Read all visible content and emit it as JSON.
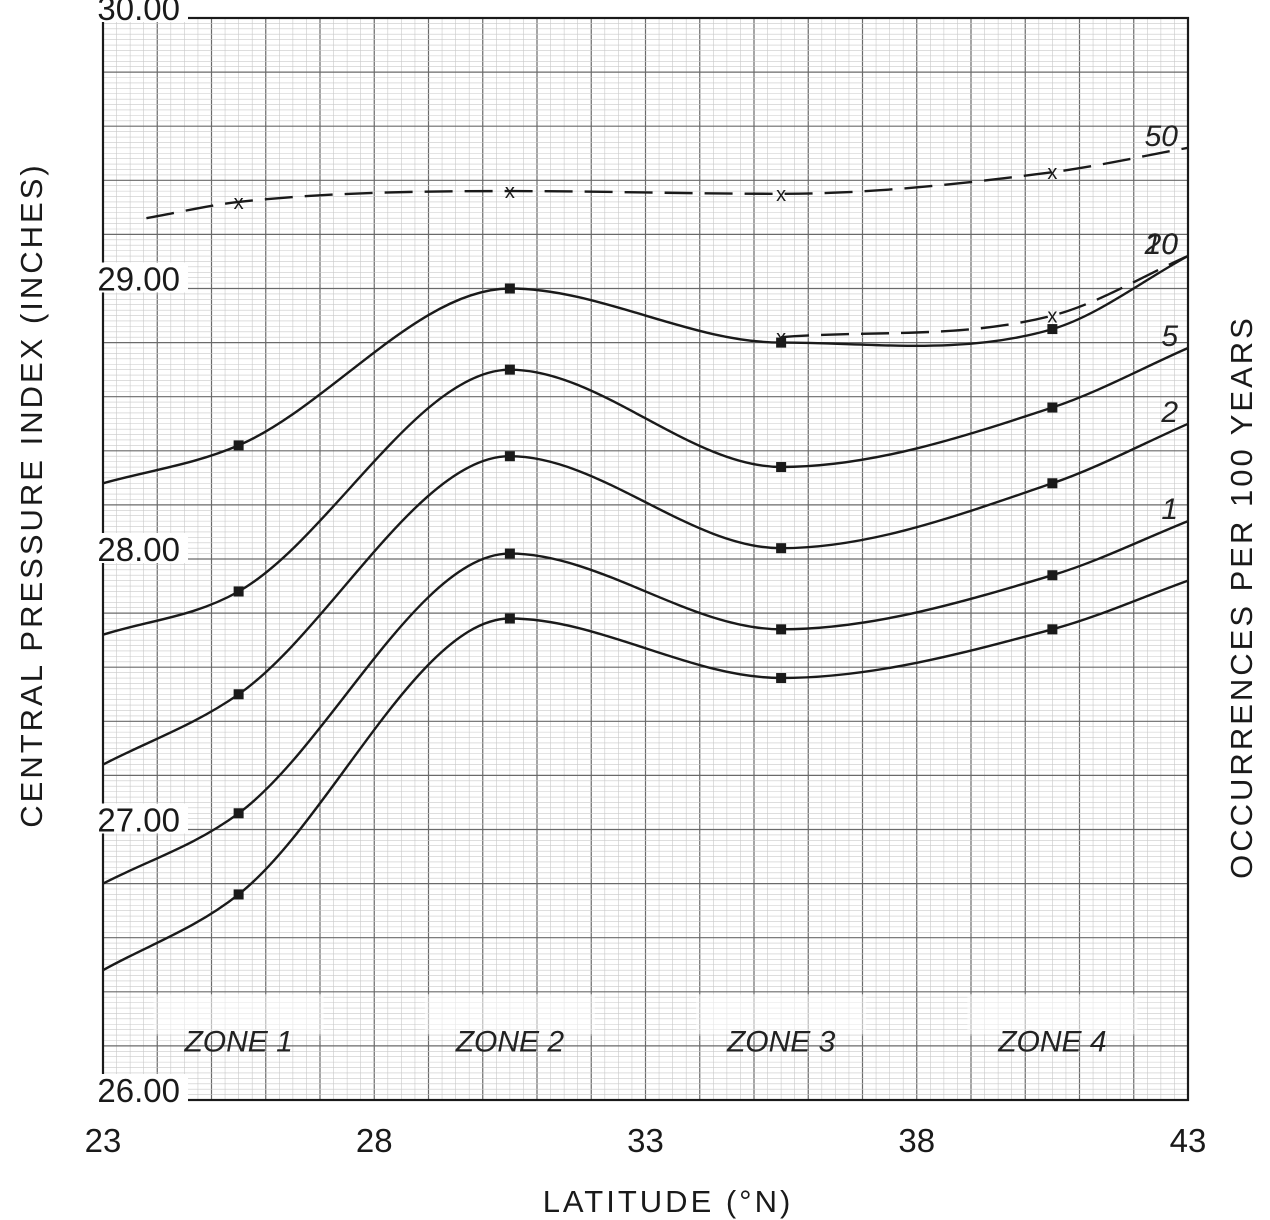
{
  "chart_data": {
    "type": "line",
    "title": "",
    "xlabel": "LATITUDE (°N)",
    "ylabel": "CENTRAL PRESSURE INDEX (INCHES)",
    "right_label": "OCCURRENCES PER 100 YEARS",
    "xlim": [
      23,
      43
    ],
    "ylim": [
      26.0,
      30.0
    ],
    "x_ticks": [
      "23",
      "28",
      "33",
      "38",
      "43"
    ],
    "y_ticks": [
      "26.00",
      "27.00",
      "28.00",
      "29.00",
      "30.00"
    ],
    "grid": true,
    "zones": [
      "ZONE 1",
      "ZONE 2",
      "ZONE 3",
      "ZONE 4"
    ],
    "series": [
      {
        "name": "50",
        "style": "dashed",
        "x": [
          23.8,
          25.5,
          30.5,
          35.5,
          40.5,
          43.0
        ],
        "y": [
          29.26,
          29.32,
          29.36,
          29.35,
          29.43,
          29.52
        ]
      },
      {
        "name": "20",
        "style": "dashed",
        "x": [
          35.5,
          40.5,
          43.0
        ],
        "y": [
          28.82,
          28.9,
          29.12
        ]
      },
      {
        "name": "10",
        "style": "solid",
        "x": [
          23.0,
          25.5,
          30.5,
          35.5,
          40.5,
          43.0
        ],
        "y": [
          28.28,
          28.42,
          29.0,
          28.8,
          28.85,
          29.12
        ]
      },
      {
        "name": "5",
        "style": "solid",
        "x": [
          23.0,
          25.5,
          30.5,
          35.5,
          40.5,
          43.0
        ],
        "y": [
          27.72,
          27.88,
          28.7,
          28.34,
          28.56,
          28.78
        ]
      },
      {
        "name": "2",
        "style": "solid",
        "x": [
          23.0,
          25.5,
          30.5,
          35.5,
          40.5,
          43.0
        ],
        "y": [
          27.24,
          27.5,
          28.38,
          28.04,
          28.28,
          28.5
        ]
      },
      {
        "name": "1",
        "style": "solid",
        "x": [
          23.0,
          25.5,
          30.5,
          35.5,
          40.5,
          43.0
        ],
        "y": [
          26.8,
          27.06,
          28.02,
          27.74,
          27.94,
          28.14
        ]
      },
      {
        "name": "",
        "style": "solid",
        "x": [
          23.0,
          25.5,
          30.5,
          35.5,
          40.5,
          43.0
        ],
        "y": [
          26.48,
          26.76,
          27.78,
          27.56,
          27.74,
          27.92
        ]
      }
    ],
    "return_period_labels": [
      "50",
      "20",
      "10",
      "5",
      "2",
      "1"
    ]
  }
}
